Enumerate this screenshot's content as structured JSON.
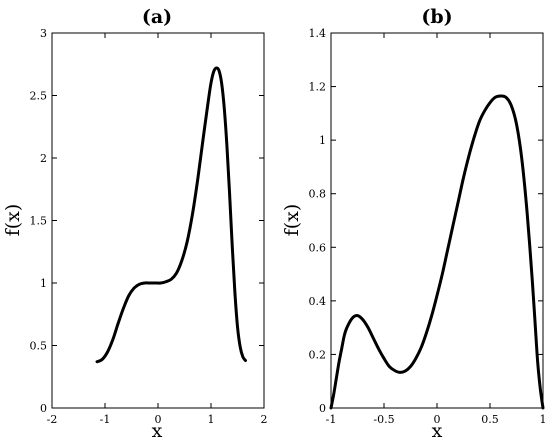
{
  "chart_data": [
    {
      "type": "line",
      "title": "(a)",
      "xlabel": "x",
      "ylabel": "f(x)",
      "xlim": [
        -2,
        2
      ],
      "ylim": [
        0,
        3
      ],
      "xticks": [
        -2,
        -1,
        0,
        1,
        2
      ],
      "yticks": [
        0,
        0.5,
        1,
        1.5,
        2,
        2.5,
        3
      ],
      "xtick_labels": [
        "-2",
        "-1",
        "0",
        "1",
        "2"
      ],
      "ytick_labels": [
        "0",
        "0.5",
        "1",
        "1.5",
        "2",
        "2.5",
        "3"
      ],
      "grid": false,
      "series": [
        {
          "x": [
            -1.15,
            -1.05,
            -0.95,
            -0.85,
            -0.75,
            -0.65,
            -0.55,
            -0.45,
            -0.35,
            -0.25,
            -0.15,
            -0.05,
            0.05,
            0.15,
            0.25,
            0.35,
            0.45,
            0.55,
            0.65,
            0.75,
            0.85,
            0.95,
            1.0,
            1.05,
            1.1,
            1.15,
            1.2,
            1.25,
            1.3,
            1.35,
            1.4,
            1.45,
            1.5,
            1.55,
            1.6,
            1.65
          ],
          "y": [
            0.37,
            0.39,
            0.45,
            0.55,
            0.68,
            0.8,
            0.9,
            0.96,
            0.99,
            1.0,
            1.0,
            1.0,
            1.0,
            1.01,
            1.03,
            1.08,
            1.18,
            1.33,
            1.55,
            1.83,
            2.15,
            2.46,
            2.6,
            2.69,
            2.72,
            2.7,
            2.6,
            2.4,
            2.1,
            1.72,
            1.3,
            0.93,
            0.65,
            0.49,
            0.41,
            0.38
          ]
        }
      ]
    },
    {
      "type": "line",
      "title": "(b)",
      "xlabel": "x",
      "ylabel": "f(x)",
      "xlim": [
        -1,
        1
      ],
      "ylim": [
        0,
        1.4
      ],
      "xticks": [
        -1,
        -0.5,
        0,
        0.5,
        1
      ],
      "yticks": [
        0,
        0.2,
        0.4,
        0.6,
        0.8,
        1,
        1.2,
        1.4
      ],
      "xtick_labels": [
        "-1",
        "-0.5",
        "0",
        "0.5",
        "1"
      ],
      "ytick_labels": [
        "0",
        "0.2",
        "0.4",
        "0.6",
        "0.8",
        "1",
        "1.2",
        "1.4"
      ],
      "grid": false,
      "series": [
        {
          "x": [
            -1.0,
            -0.975,
            -0.95,
            -0.925,
            -0.9,
            -0.875,
            -0.85,
            -0.8,
            -0.75,
            -0.7,
            -0.65,
            -0.6,
            -0.55,
            -0.5,
            -0.45,
            -0.4,
            -0.35,
            -0.3,
            -0.25,
            -0.2,
            -0.15,
            -0.1,
            -0.05,
            0.0,
            0.05,
            0.1,
            0.15,
            0.2,
            0.25,
            0.3,
            0.35,
            0.4,
            0.45,
            0.5,
            0.55,
            0.6,
            0.65,
            0.7,
            0.75,
            0.8,
            0.85,
            0.9,
            0.925,
            0.95,
            0.975,
            1.0
          ],
          "y": [
            0.0,
            0.05,
            0.11,
            0.17,
            0.22,
            0.27,
            0.3,
            0.335,
            0.345,
            0.33,
            0.3,
            0.26,
            0.22,
            0.185,
            0.155,
            0.14,
            0.133,
            0.138,
            0.155,
            0.185,
            0.225,
            0.28,
            0.345,
            0.42,
            0.5,
            0.59,
            0.68,
            0.77,
            0.86,
            0.94,
            1.01,
            1.07,
            1.11,
            1.14,
            1.16,
            1.165,
            1.16,
            1.13,
            1.06,
            0.93,
            0.73,
            0.47,
            0.32,
            0.17,
            0.07,
            0.0
          ]
        }
      ]
    }
  ]
}
